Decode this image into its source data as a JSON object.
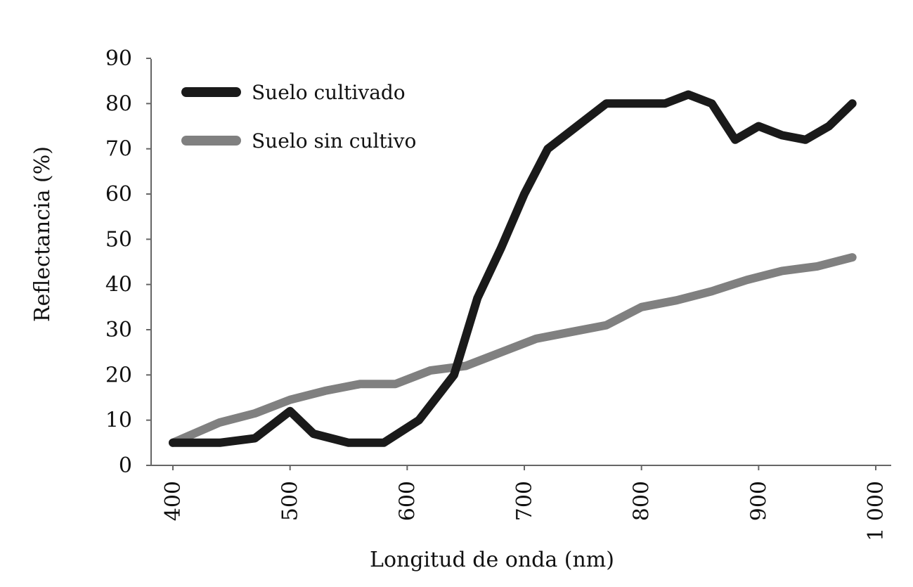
{
  "chart_data": {
    "type": "line",
    "title": "",
    "xlabel": "Longitud de onda (nm)",
    "ylabel": "Reflectancia (%)",
    "xlim": [
      380,
      1000
    ],
    "ylim": [
      0,
      90
    ],
    "xticks": [
      400,
      500,
      600,
      700,
      800,
      900,
      1000
    ],
    "xtick_labels": [
      "400",
      "500",
      "600",
      "700",
      "800",
      "900",
      "1 000"
    ],
    "yticks": [
      0,
      10,
      20,
      30,
      40,
      50,
      60,
      70,
      80,
      90
    ],
    "ytick_labels": [
      "0",
      "10",
      "20",
      "30",
      "40",
      "50",
      "60",
      "70",
      "80",
      "90"
    ],
    "grid": false,
    "legend_position": "top-left",
    "series": [
      {
        "name": "Suelo cultivado",
        "color": "#1a1a1a",
        "x": [
          400,
          420,
          440,
          470,
          500,
          520,
          550,
          580,
          610,
          640,
          660,
          680,
          700,
          720,
          745,
          770,
          795,
          820,
          840,
          860,
          880,
          900,
          920,
          940,
          960,
          980
        ],
        "y": [
          5,
          5,
          5,
          6,
          12,
          7,
          5,
          5,
          10,
          20,
          37,
          48,
          60,
          70,
          75,
          80,
          80,
          80,
          82,
          80,
          72,
          75,
          73,
          72,
          75,
          80
        ]
      },
      {
        "name": "Suelo sin cultivo",
        "color": "#808080",
        "x": [
          400,
          440,
          470,
          500,
          530,
          560,
          590,
          620,
          650,
          680,
          710,
          740,
          770,
          800,
          830,
          860,
          890,
          920,
          950,
          980
        ],
        "y": [
          5,
          9.5,
          11.5,
          14.5,
          16.5,
          18,
          18,
          21,
          22,
          25,
          28,
          29.5,
          31,
          35,
          36.5,
          38.5,
          41,
          43,
          44,
          46
        ]
      }
    ]
  }
}
